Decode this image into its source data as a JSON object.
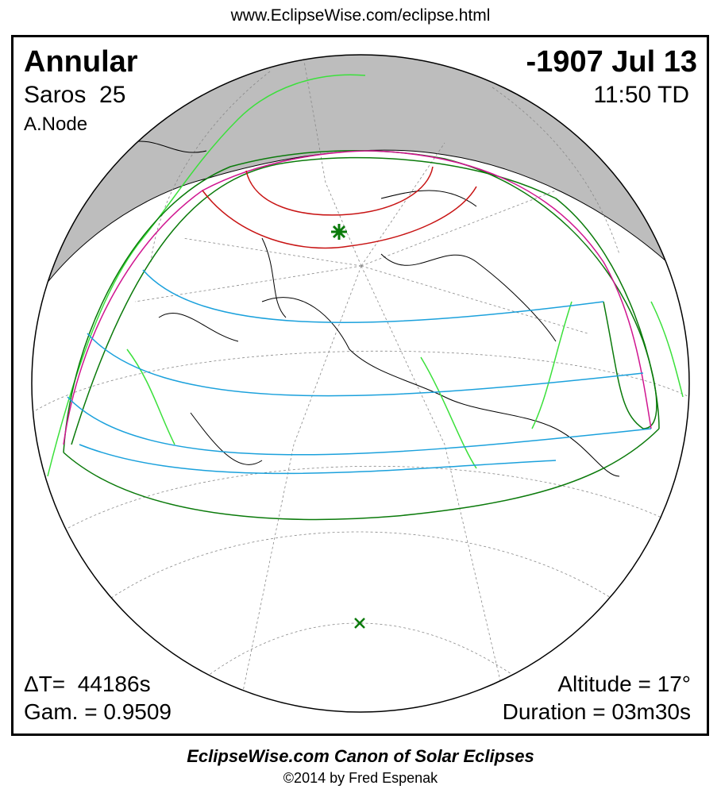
{
  "header": {
    "url": "www.EclipseWise.com/eclipse.html"
  },
  "panel": {
    "eclipse_type": "Annular",
    "date": "-1907 Jul 13",
    "saros": "Saros  25",
    "time": "11:50 TD",
    "node": "A.Node",
    "delta_t": "ΔT=  44186s",
    "altitude": "Altitude = 17°",
    "gamma": "Gam. = 0.9509",
    "duration": "Duration = 03m30s"
  },
  "footer": {
    "title": "EclipseWise.com Canon of Solar Eclipses",
    "credit": "©2014 by Fred Espenak"
  }
}
